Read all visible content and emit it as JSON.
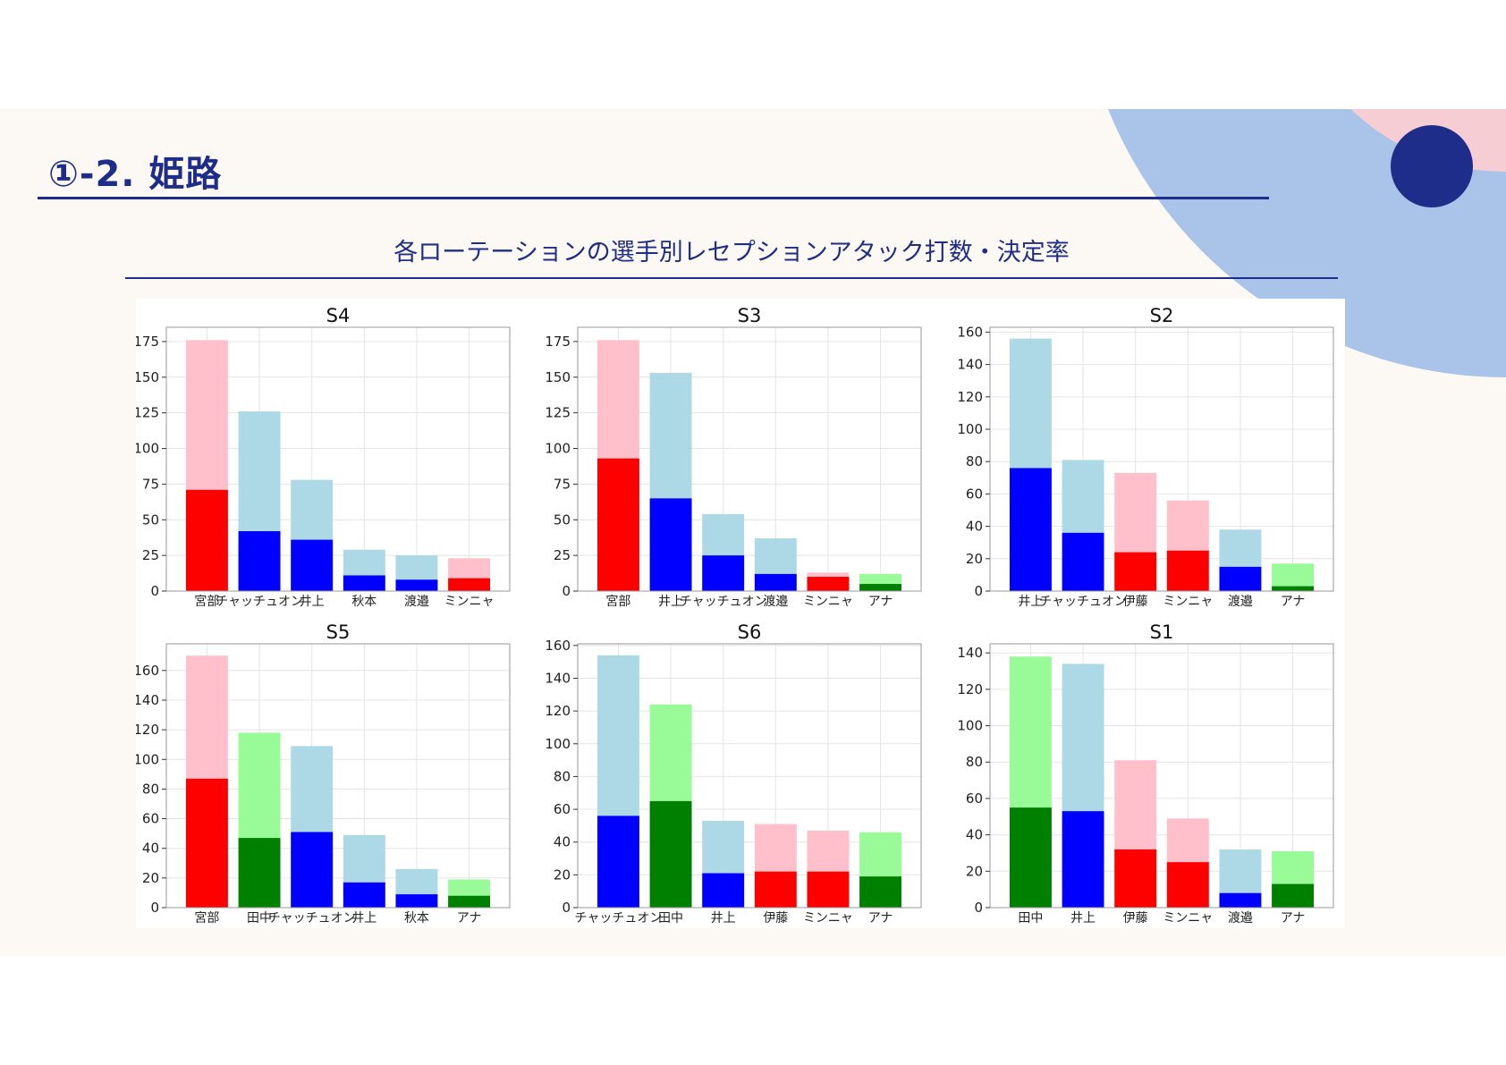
{
  "page": {
    "title": "①-2. 姫路",
    "subtitle": "各ローテーションの選手別レセプションアタック打数・決定率"
  },
  "colors": {
    "accent": "#1f2d8a",
    "deco_light_blue": "#aac3e8",
    "deco_pink": "#f6cdd2",
    "deco_navy": "#1f2d8a",
    "red_light": "#ffc0cb",
    "red_dark": "#ff0000",
    "blue_light": "#add8e6",
    "blue_dark": "#0000ff",
    "green_light": "#98fb98",
    "green_dark": "#008000"
  },
  "chart_data": [
    {
      "type": "bar",
      "title": "S4",
      "ylim": [
        0,
        185
      ],
      "ticks": [
        0,
        25,
        50,
        75,
        100,
        125,
        150,
        175
      ],
      "categories": [
        "宮部",
        "チャッチュオン",
        "井上",
        "秋本",
        "渡邉",
        "ミンニャ"
      ],
      "total": [
        176,
        126,
        78,
        29,
        25,
        23
      ],
      "kill": [
        71,
        42,
        36,
        11,
        8,
        9
      ],
      "color": [
        "red",
        "blue",
        "blue",
        "blue",
        "blue",
        "red"
      ]
    },
    {
      "type": "bar",
      "title": "S3",
      "ylim": [
        0,
        185
      ],
      "ticks": [
        0,
        25,
        50,
        75,
        100,
        125,
        150,
        175
      ],
      "categories": [
        "宮部",
        "井上",
        "チャッチュオン",
        "渡邉",
        "ミンニャ",
        "アナ"
      ],
      "total": [
        176,
        153,
        54,
        37,
        13,
        12
      ],
      "kill": [
        93,
        65,
        25,
        12,
        10,
        5
      ],
      "color": [
        "red",
        "blue",
        "blue",
        "blue",
        "red",
        "green"
      ]
    },
    {
      "type": "bar",
      "title": "S2",
      "ylim": [
        0,
        163
      ],
      "ticks": [
        0,
        20,
        40,
        60,
        80,
        100,
        120,
        140,
        160
      ],
      "categories": [
        "井上",
        "チャッチュオン",
        "伊藤",
        "ミンニャ",
        "渡邉",
        "アナ"
      ],
      "total": [
        156,
        81,
        73,
        56,
        38,
        17
      ],
      "kill": [
        76,
        36,
        24,
        25,
        15,
        3
      ],
      "color": [
        "blue",
        "blue",
        "red",
        "red",
        "blue",
        "green"
      ]
    },
    {
      "type": "bar",
      "title": "S5",
      "ylim": [
        0,
        178
      ],
      "ticks": [
        0,
        20,
        40,
        60,
        80,
        100,
        120,
        140,
        160
      ],
      "categories": [
        "宮部",
        "田中",
        "チャッチュオン",
        "井上",
        "秋本",
        "アナ"
      ],
      "total": [
        170,
        118,
        109,
        49,
        26,
        19
      ],
      "kill": [
        87,
        47,
        51,
        17,
        9,
        8
      ],
      "color": [
        "red",
        "green",
        "blue",
        "blue",
        "blue",
        "green"
      ]
    },
    {
      "type": "bar",
      "title": "S6",
      "ylim": [
        0,
        161
      ],
      "ticks": [
        0,
        20,
        40,
        60,
        80,
        100,
        120,
        140,
        160
      ],
      "categories": [
        "チャッチュオン",
        "田中",
        "井上",
        "伊藤",
        "ミンニャ",
        "アナ"
      ],
      "total": [
        154,
        124,
        53,
        51,
        47,
        46
      ],
      "kill": [
        56,
        65,
        21,
        22,
        22,
        19
      ],
      "color": [
        "blue",
        "green",
        "blue",
        "red",
        "red",
        "green"
      ]
    },
    {
      "type": "bar",
      "title": "S1",
      "ylim": [
        0,
        145
      ],
      "ticks": [
        0,
        20,
        40,
        60,
        80,
        100,
        120,
        140
      ],
      "categories": [
        "田中",
        "井上",
        "伊藤",
        "ミンニャ",
        "渡邉",
        "アナ"
      ],
      "total": [
        138,
        134,
        81,
        49,
        32,
        31
      ],
      "kill": [
        55,
        53,
        32,
        25,
        8,
        13
      ],
      "color": [
        "green",
        "blue",
        "red",
        "red",
        "blue",
        "green"
      ]
    }
  ]
}
